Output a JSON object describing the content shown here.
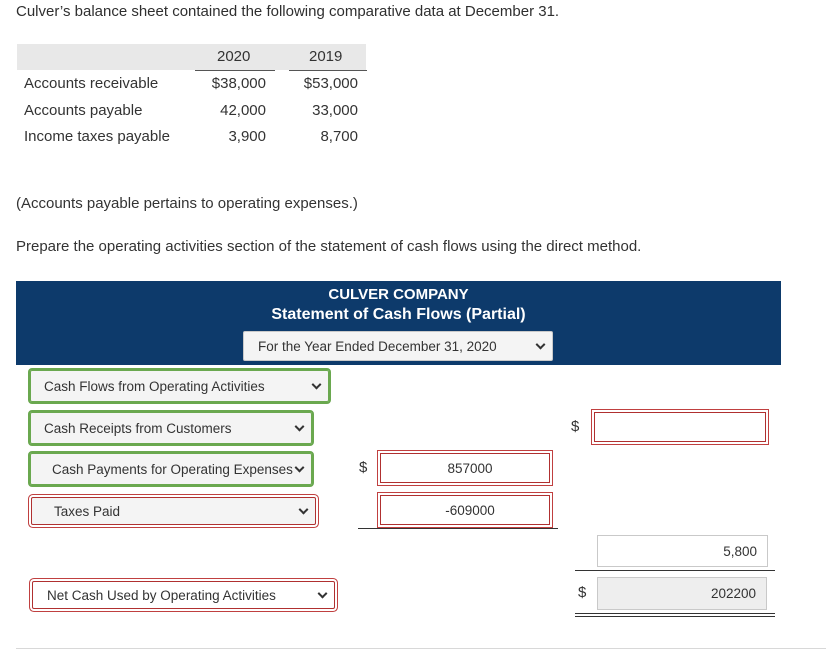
{
  "intro": "Culver’s balance sheet contained the following comparative data at December 31.",
  "balance": {
    "col1": "2020",
    "col2": "2019",
    "rows": [
      {
        "label": "Accounts receivable",
        "v2020": "$38,000",
        "v2019": "$53,000"
      },
      {
        "label": "Accounts payable",
        "v2020": "42,000",
        "v2019": "33,000"
      },
      {
        "label": "Income taxes payable",
        "v2020": "3,900",
        "v2019": "8,700"
      }
    ]
  },
  "note": "(Accounts payable pertains to operating expenses.)",
  "instruction": "Prepare the operating activities section of the statement of cash flows using the direct method.",
  "header": {
    "company": "CULVER COMPANY",
    "statement": "Statement of Cash Flows (Partial)",
    "period": "For the Year Ended December 31, 2020"
  },
  "form": {
    "section_select": "Cash Flows from Operating Activities",
    "receipts_select": "Cash Receipts from Customers",
    "receipts_total": "",
    "payments_select": "Cash Payments for Operating Expenses",
    "payments_value": "857000",
    "taxes_select": "Taxes Paid",
    "taxes_value": "-609000",
    "subtotal_value": "5,800",
    "net_select": "Net Cash Used by Operating Activities",
    "net_value": "202200",
    "currency": "$"
  },
  "colors": {
    "banner": "#0d3a6b",
    "error_border": "#c04040",
    "ok_border": "#6aa84f"
  }
}
